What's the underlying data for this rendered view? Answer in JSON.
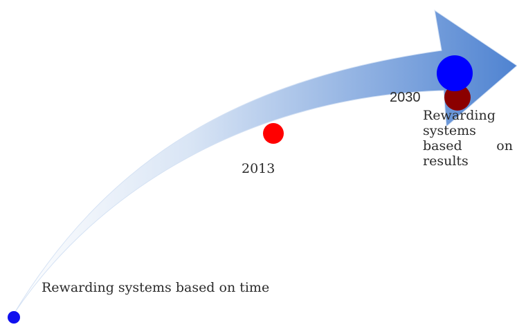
{
  "diagram": {
    "start_label": "Rewarding systems based on time",
    "milestone_2013": "2013",
    "milestone_2030": "2030",
    "end_label": "Rewarding systems based on results"
  },
  "colors": {
    "arrow_light": "#ffffff",
    "arrow_dark": "#4f83d1",
    "start_dot": "#1010ee",
    "dot_2013": "#ff0000",
    "dot_2030_blue": "#0000ff",
    "dot_2030_dark_red": "#8b0000"
  }
}
